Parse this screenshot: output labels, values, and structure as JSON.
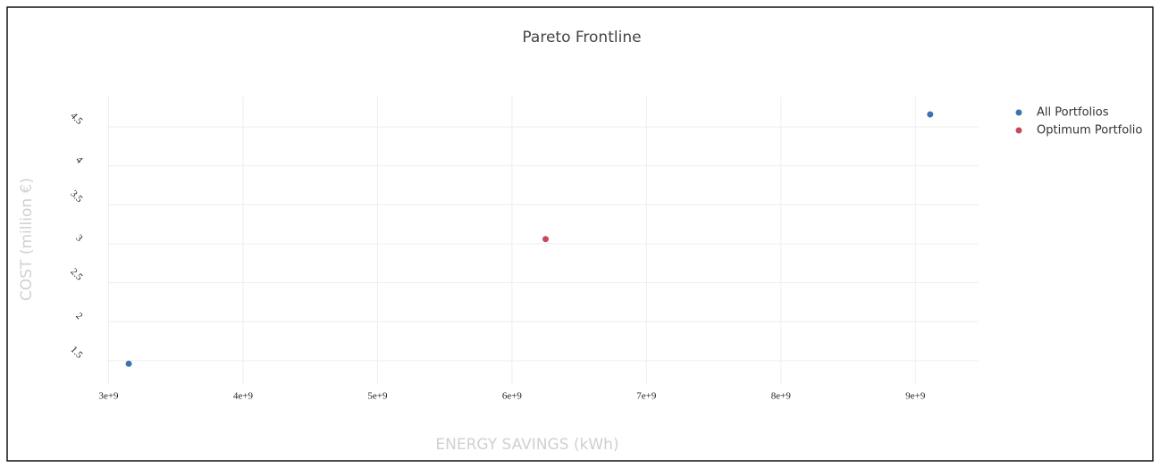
{
  "chart_data": {
    "type": "scatter",
    "title": "Pareto Frontline",
    "x_label": "ENERGY SAVINGS (kWh)",
    "y_label": "COST (million €)",
    "series": [
      {
        "name": "All Portfolios",
        "color": "#3a75b0",
        "x": [
          3150000000,
          9110000000
        ],
        "values": [
          1.46,
          4.66
        ]
      },
      {
        "name": "Optimum Portfolio",
        "color": "#c8485a",
        "x": [
          6250000000
        ],
        "values": [
          3.06
        ]
      }
    ],
    "xlim": [
      2990000000,
      9470000000
    ],
    "xticks": [
      {
        "value": 3000000000,
        "label": "3e+9"
      },
      {
        "value": 4000000000,
        "label": "4e+9"
      },
      {
        "value": 5000000000,
        "label": "5e+9"
      },
      {
        "value": 6000000000,
        "label": "6e+9"
      },
      {
        "value": 7000000000,
        "label": "7e+9"
      },
      {
        "value": 8000000000,
        "label": "8e+9"
      },
      {
        "value": 9000000000,
        "label": "9e+9"
      }
    ],
    "ylim": [
      1.2,
      4.89
    ],
    "yticks": [
      1.5,
      2,
      2.5,
      3,
      3.5,
      4,
      4.5
    ],
    "grid": true,
    "legend": "top-right"
  }
}
